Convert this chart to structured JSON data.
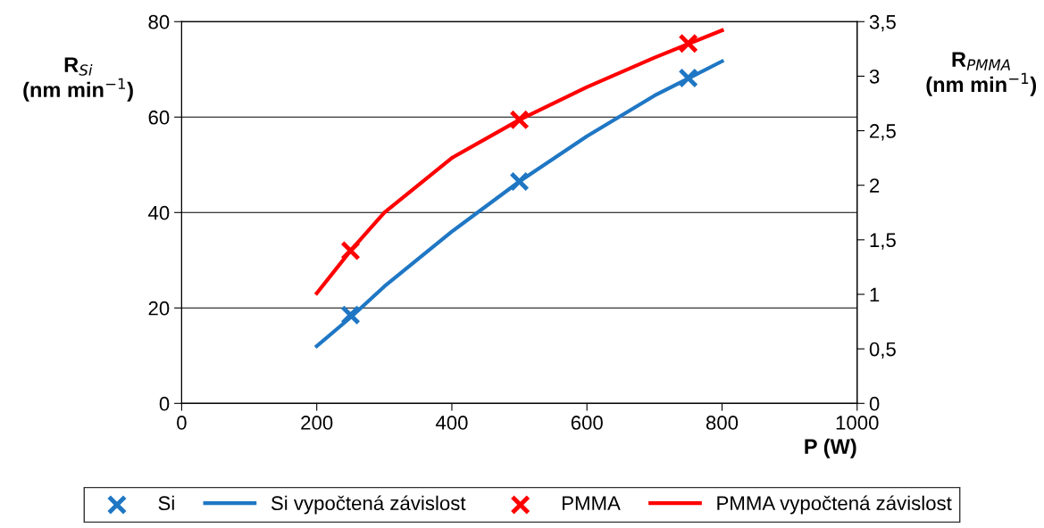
{
  "chart_data": {
    "type": "scatter",
    "xlabel": "P (W)",
    "ylabel": "R$_{Si}$\n(nm min$^{−1}$)",
    "y2label": "R$_{PMMA}$\n(nm min$^{−1}$)",
    "xlim": [
      0,
      1000
    ],
    "xticks": [
      0,
      200,
      400,
      600,
      800,
      1000
    ],
    "ylim": [
      0,
      80
    ],
    "yticks": [
      0,
      20,
      40,
      60,
      80
    ],
    "y2lim": [
      0,
      3.5
    ],
    "y2ticks": [
      0,
      {
        "value": 0.5,
        "label": "0,5"
      },
      1,
      {
        "value": 1.5,
        "label": "1,5"
      },
      2,
      {
        "value": 2.5,
        "label": "2,5"
      },
      3,
      {
        "value": 3.5,
        "label": "3,5"
      }
    ],
    "grid": "y",
    "legend": "bottom",
    "series": [
      {
        "name": "Si",
        "marker": "cross",
        "color": "#1f77c4",
        "x": [
          250,
          500,
          750
        ],
        "values": [
          18.5,
          46.5,
          68.2
        ]
      },
      {
        "name": "Si vypočtená závislost",
        "type": "line",
        "color": "#1f77c4",
        "x": [
          200,
          250,
          300,
          400,
          500,
          600,
          700,
          800
        ],
        "values": [
          12,
          18,
          24.5,
          36,
          46.5,
          56,
          64.5,
          71.7
        ]
      },
      {
        "name": "PMMA",
        "marker": "cross",
        "axis": "y2",
        "color": "#ff0000",
        "x": [
          250,
          500,
          750
        ],
        "values": [
          1.4,
          2.6,
          3.3
        ]
      },
      {
        "name": "PMMA vypočtená závislost",
        "type": "line",
        "axis": "y2",
        "color": "#ff0000",
        "x": [
          200,
          250,
          300,
          400,
          500,
          600,
          700,
          800
        ],
        "values": [
          1.01,
          1.4,
          1.75,
          2.25,
          2.6,
          2.9,
          3.17,
          3.42
        ]
      }
    ]
  }
}
